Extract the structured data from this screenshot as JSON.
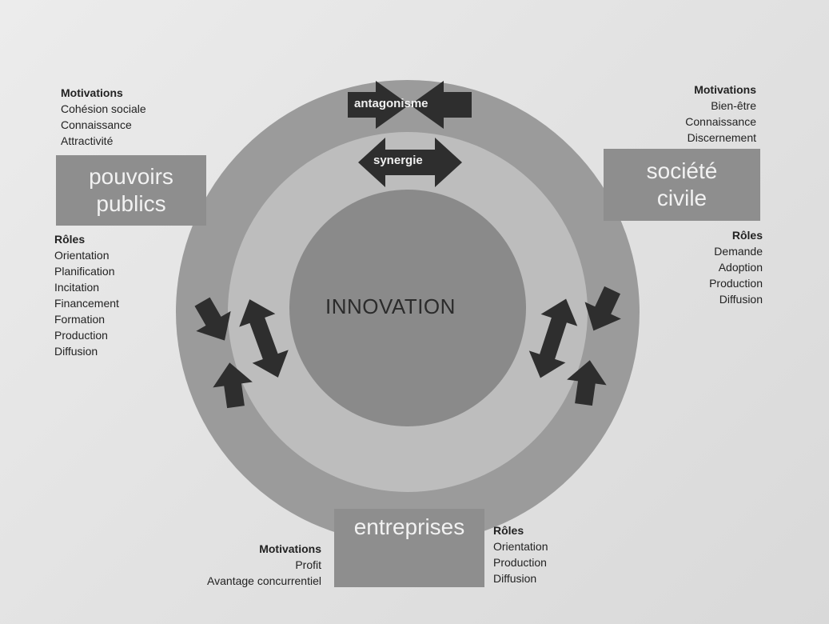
{
  "diagram": {
    "center": "INNOVATION",
    "arrows": {
      "top": "antagonisme",
      "inner": "synergie"
    },
    "pouvoirs_publics": {
      "line1": "pouvoirs",
      "line2": "publics",
      "motivations": {
        "title": "Motivations",
        "items": [
          "Cohésion sociale",
          "Connaissance",
          "Attractivité"
        ]
      },
      "roles": {
        "title": "Rôles",
        "items": [
          "Orientation",
          "Planification",
          "Incitation",
          "Financement",
          "Formation",
          "Production",
          "Diffusion"
        ]
      }
    },
    "societe_civile": {
      "line1": "société",
      "line2": "civile",
      "motivations": {
        "title": "Motivations",
        "items": [
          "Bien-être",
          "Connaissance",
          "Discernement"
        ]
      },
      "roles": {
        "title": "Rôles",
        "items": [
          "Demande",
          "Adoption",
          "Production",
          "Diffusion"
        ]
      }
    },
    "entreprises": {
      "label": "entreprises",
      "motivations": {
        "title": "Motivations",
        "items": [
          "Profit",
          "Avantage concurrentiel"
        ]
      },
      "roles": {
        "title": "Rôles",
        "items": [
          "Orientation",
          "Production",
          "Diffusion"
        ]
      }
    },
    "colors": {
      "outer_ring": "#9b9b9b",
      "inner_ring": "#bdbdbd",
      "core": "#8a8a8a",
      "arrow": "#2e2e2e",
      "box": "#8e8e8e"
    }
  }
}
